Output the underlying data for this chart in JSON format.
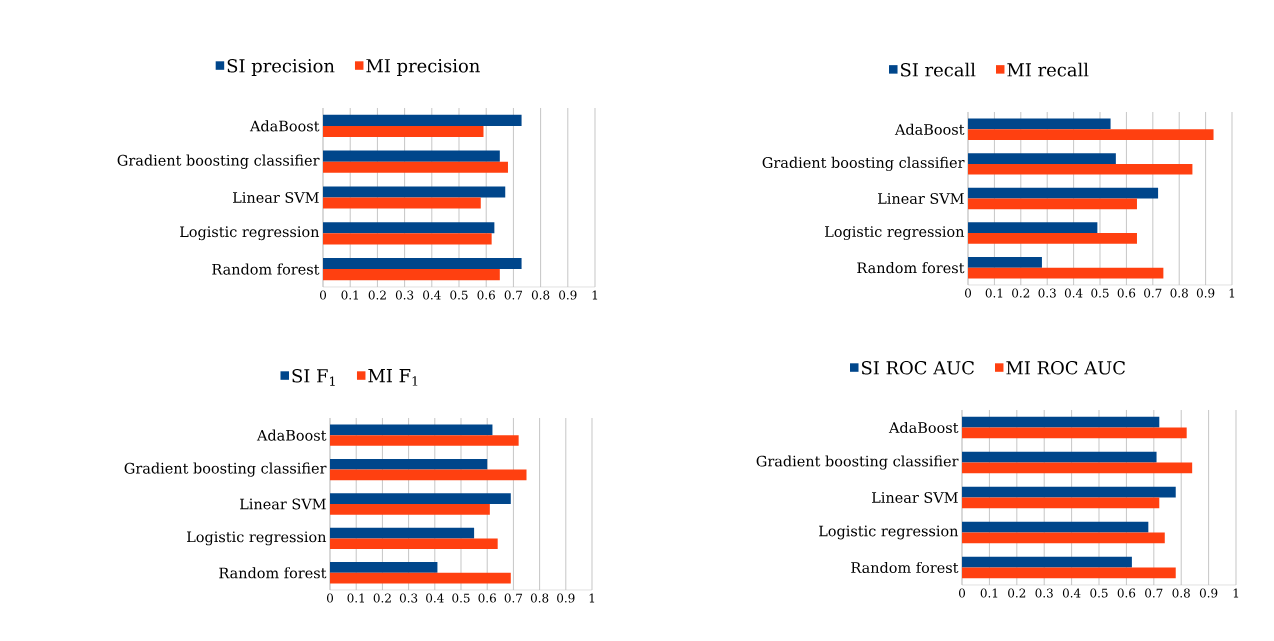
{
  "chart_data": [
    {
      "type": "bar",
      "orientation": "horizontal",
      "categories": [
        "AdaBoost",
        "Gradient boosting classifier",
        "Linear SVM",
        "Logistic regression",
        "Random forest"
      ],
      "series": [
        {
          "name": "SI precision",
          "color": "#00468b",
          "values": [
            0.73,
            0.65,
            0.67,
            0.63,
            0.73
          ]
        },
        {
          "name": "MI precision",
          "color": "#ff4010",
          "values": [
            0.59,
            0.68,
            0.58,
            0.62,
            0.65
          ]
        }
      ],
      "xlim": [
        0,
        1
      ],
      "xticks": [
        0,
        0.1,
        0.2,
        0.3,
        0.4,
        0.5,
        0.6,
        0.7,
        0.8,
        0.9,
        1
      ],
      "grid": "x",
      "legend": "top"
    },
    {
      "type": "bar",
      "orientation": "horizontal",
      "categories": [
        "AdaBoost",
        "Gradient boosting classifier",
        "Linear SVM",
        "Logistic regression",
        "Random forest"
      ],
      "series": [
        {
          "name": "SI recall",
          "color": "#00468b",
          "values": [
            0.54,
            0.56,
            0.72,
            0.49,
            0.28
          ]
        },
        {
          "name": "MI recall",
          "color": "#ff4010",
          "values": [
            0.93,
            0.85,
            0.64,
            0.64,
            0.74
          ]
        }
      ],
      "xlim": [
        0,
        1
      ],
      "xticks": [
        0,
        0.1,
        0.2,
        0.3,
        0.4,
        0.5,
        0.6,
        0.7,
        0.8,
        0.9,
        1
      ],
      "grid": "x",
      "legend": "top"
    },
    {
      "type": "bar",
      "orientation": "horizontal",
      "categories": [
        "AdaBoost",
        "Gradient boosting classifier",
        "Linear SVM",
        "Logistic regression",
        "Random forest"
      ],
      "series": [
        {
          "name": "SI F$_{1}$",
          "color": "#00468b",
          "values": [
            0.62,
            0.6,
            0.69,
            0.55,
            0.41
          ]
        },
        {
          "name": "MI F$_{1}$",
          "color": "#ff4010",
          "values": [
            0.72,
            0.75,
            0.61,
            0.64,
            0.69
          ]
        }
      ],
      "xlim": [
        0,
        1
      ],
      "xticks": [
        0,
        0.1,
        0.2,
        0.3,
        0.4,
        0.5,
        0.6,
        0.7,
        0.8,
        0.9,
        1
      ],
      "grid": "x",
      "legend": "top"
    },
    {
      "type": "bar",
      "orientation": "horizontal",
      "categories": [
        "AdaBoost",
        "Gradient boosting classifier",
        "Linear SVM",
        "Logistic regression",
        "Random forest"
      ],
      "series": [
        {
          "name": "SI ROC AUC",
          "color": "#00468b",
          "values": [
            0.72,
            0.71,
            0.78,
            0.68,
            0.62
          ]
        },
        {
          "name": "MI ROC AUC",
          "color": "#ff4010",
          "values": [
            0.82,
            0.84,
            0.72,
            0.74,
            0.78
          ]
        }
      ],
      "xlim": [
        0,
        1
      ],
      "xticks": [
        0,
        0.1,
        0.2,
        0.3,
        0.4,
        0.5,
        0.6,
        0.7,
        0.8,
        0.9,
        1
      ],
      "grid": "x",
      "legend": "top"
    }
  ]
}
